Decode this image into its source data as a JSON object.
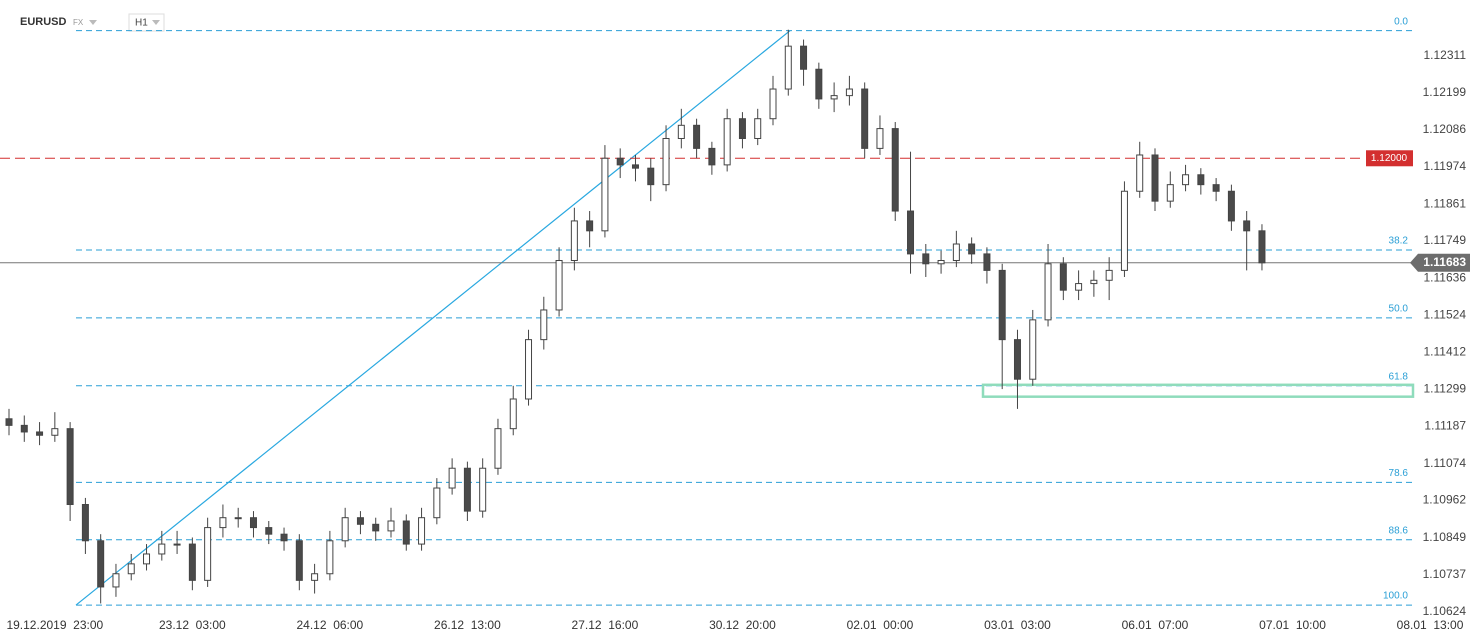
{
  "chart_data": {
    "type": "candlestick",
    "symbol": "EURUSD",
    "market": "FX",
    "timeframe": "H1",
    "categories": [
      null,
      null,
      null,
      "19.12.2019  23:00",
      null,
      null,
      null,
      null,
      null,
      null,
      null,
      null,
      "23.12  03:00",
      null,
      null,
      null,
      null,
      null,
      null,
      null,
      null,
      "24.12  06:00",
      null,
      null,
      null,
      null,
      null,
      null,
      null,
      null,
      "26.12  13:00",
      null,
      null,
      null,
      null,
      null,
      null,
      null,
      null,
      "27.12  16:00",
      null,
      null,
      null,
      null,
      null,
      null,
      null,
      null,
      "30.12  20:00",
      null,
      null,
      null,
      null,
      null,
      null,
      null,
      null,
      "02.01  00:00",
      null,
      null,
      null,
      null,
      null,
      null,
      null,
      null,
      "03.01  03:00",
      null,
      null,
      null,
      null,
      null,
      null,
      null,
      null,
      "06.01  07:00",
      null,
      null,
      null,
      null,
      null,
      null,
      null,
      null,
      "07.01  10:00",
      null,
      null,
      null,
      null,
      null,
      null,
      null,
      null,
      "08.01  13:00"
    ],
    "open": [
      1.1121,
      1.1119,
      1.1117,
      1.1116,
      1.1118,
      1.1095,
      1.1084,
      1.107,
      1.1074,
      1.1077,
      1.108,
      1.1083,
      1.1083,
      1.1072,
      1.1088,
      1.1091,
      1.1091,
      1.1088,
      1.1086,
      1.1084,
      1.1072,
      1.1074,
      1.1084,
      1.1091,
      1.1089,
      1.1087,
      1.109,
      1.1083,
      1.1091,
      1.11,
      1.1106,
      1.1093,
      1.1106,
      1.1118,
      1.1127,
      1.1145,
      1.1154,
      1.1169,
      1.1181,
      1.1178,
      1.12,
      1.1198,
      1.1197,
      1.1192,
      1.1206,
      1.121,
      1.1203,
      1.1198,
      1.1212,
      1.1206,
      1.1212,
      1.1221,
      1.1234,
      1.1227,
      1.1218,
      1.1219,
      1.1221,
      1.1203,
      1.1209,
      1.1184,
      1.1171,
      1.1168,
      1.1169,
      1.1174,
      1.1171,
      1.1166,
      1.1145,
      1.1133,
      1.1151,
      1.1168,
      1.116,
      1.1162,
      1.1163,
      1.1166,
      1.119,
      1.1201,
      1.1187,
      1.1192,
      1.1195,
      1.1192,
      1.119,
      1.1181,
      1.1178,
      null,
      null,
      null,
      null,
      null,
      null,
      null,
      null,
      null,
      null,
      null
    ],
    "high": [
      1.1124,
      1.1122,
      1.112,
      1.1123,
      1.112,
      1.1097,
      1.1086,
      1.1077,
      1.108,
      1.1083,
      1.1087,
      1.1087,
      1.1085,
      1.1091,
      1.1095,
      1.1094,
      1.1093,
      1.109,
      1.1088,
      1.1086,
      1.1077,
      1.1087,
      1.1094,
      1.1093,
      1.1091,
      1.1094,
      1.1092,
      1.1094,
      1.1103,
      1.1109,
      1.1108,
      1.1109,
      1.1121,
      1.1131,
      1.1148,
      1.1158,
      1.1173,
      1.1185,
      1.1184,
      1.1204,
      1.1203,
      1.1201,
      1.12,
      1.121,
      1.1215,
      1.1212,
      1.1205,
      1.1215,
      1.1214,
      1.1215,
      1.1225,
      1.1239,
      1.1236,
      1.1229,
      1.1223,
      1.1225,
      1.1223,
      1.1213,
      1.1211,
      1.1202,
      1.1174,
      1.1172,
      1.1178,
      1.1176,
      1.1173,
      1.1168,
      1.1148,
      1.1154,
      1.1174,
      1.117,
      1.1166,
      1.1166,
      1.117,
      1.1193,
      1.1205,
      1.1203,
      1.1196,
      1.1198,
      1.1197,
      1.1194,
      1.1192,
      1.1184,
      1.118,
      null,
      null,
      null,
      null,
      null,
      null,
      null,
      null,
      null,
      null,
      null
    ],
    "low": [
      1.1116,
      1.1114,
      1.1113,
      1.1114,
      1.109,
      1.108,
      1.1065,
      1.1067,
      1.1072,
      1.1075,
      1.1078,
      1.108,
      1.1069,
      1.107,
      1.1085,
      1.1088,
      1.1085,
      1.1083,
      1.1081,
      1.1069,
      1.1068,
      1.1072,
      1.1082,
      1.1086,
      1.1084,
      1.1085,
      1.1081,
      1.1081,
      1.1089,
      1.1098,
      1.109,
      1.1091,
      1.1104,
      1.1116,
      1.1125,
      1.1142,
      1.1152,
      1.1166,
      1.1173,
      1.1176,
      1.1194,
      1.1193,
      1.1187,
      1.119,
      1.1203,
      1.12,
      1.1195,
      1.1196,
      1.1203,
      1.1204,
      1.121,
      1.1219,
      1.1222,
      1.1215,
      1.1214,
      1.1216,
      1.12,
      1.1201,
      1.1181,
      1.1165,
      1.1164,
      1.1165,
      1.1167,
      1.1168,
      1.1162,
      1.113,
      1.1124,
      1.1131,
      1.1149,
      1.1157,
      1.1157,
      1.1158,
      1.1157,
      1.1164,
      1.1188,
      1.1184,
      1.1185,
      1.119,
      1.1189,
      1.1187,
      1.1178,
      1.1166,
      1.1166,
      null,
      null,
      null,
      null,
      null,
      null,
      null,
      null,
      null,
      null,
      null
    ],
    "close": [
      1.1119,
      1.1117,
      1.1116,
      1.1118,
      1.1095,
      1.1084,
      1.107,
      1.1074,
      1.1077,
      1.108,
      1.1083,
      1.1083,
      1.1072,
      1.1088,
      1.1091,
      1.1091,
      1.1088,
      1.1086,
      1.1084,
      1.1072,
      1.1074,
      1.1084,
      1.1091,
      1.1089,
      1.1087,
      1.109,
      1.1083,
      1.1091,
      1.11,
      1.1106,
      1.1093,
      1.1106,
      1.1118,
      1.1127,
      1.1145,
      1.1154,
      1.1169,
      1.1181,
      1.1178,
      1.12,
      1.1198,
      1.1197,
      1.1192,
      1.1206,
      1.121,
      1.1203,
      1.1198,
      1.1212,
      1.1206,
      1.1212,
      1.1221,
      1.1234,
      1.1227,
      1.1218,
      1.1219,
      1.1221,
      1.1203,
      1.1209,
      1.1184,
      1.1171,
      1.1168,
      1.1169,
      1.1174,
      1.1171,
      1.1166,
      1.1145,
      1.1133,
      1.1151,
      1.1168,
      1.116,
      1.1162,
      1.1163,
      1.1166,
      1.119,
      1.1201,
      1.1187,
      1.1192,
      1.1195,
      1.1192,
      1.119,
      1.1181,
      1.1178,
      1.11683,
      null,
      null,
      null,
      null,
      null,
      null,
      null,
      null,
      null,
      null,
      null
    ],
    "up_color": "#ffffff",
    "down_color": "#4a4a4a",
    "ylim": [
      1.1053,
      1.1248
    ],
    "yticks": [
      1.12311,
      1.12199,
      1.12086,
      1.11974,
      1.11861,
      1.11749,
      1.11636,
      1.11524,
      1.11412,
      1.11299,
      1.11187,
      1.11074,
      1.10962,
      1.10849,
      1.10737,
      1.10624
    ],
    "last_price": 1.11683,
    "level_line": {
      "value": 1.12,
      "label": "1.12000",
      "color": "#d32f2f"
    },
    "fib_color": "#2a9fd6",
    "fib_levels": [
      {
        "value": 1.12387,
        "label": "0.0"
      },
      {
        "value": 1.11722,
        "label": "38.2"
      },
      {
        "value": 1.11516,
        "label": "50.0"
      },
      {
        "value": 1.1131,
        "label": "61.8"
      },
      {
        "value": 1.11017,
        "label": "78.6"
      },
      {
        "value": 1.10843,
        "label": "88.6"
      },
      {
        "value": 1.10645,
        "label": "100.0"
      }
    ],
    "support_zone": {
      "low": 1.11277,
      "high": 1.11313,
      "color": "#8fdcbc"
    }
  }
}
